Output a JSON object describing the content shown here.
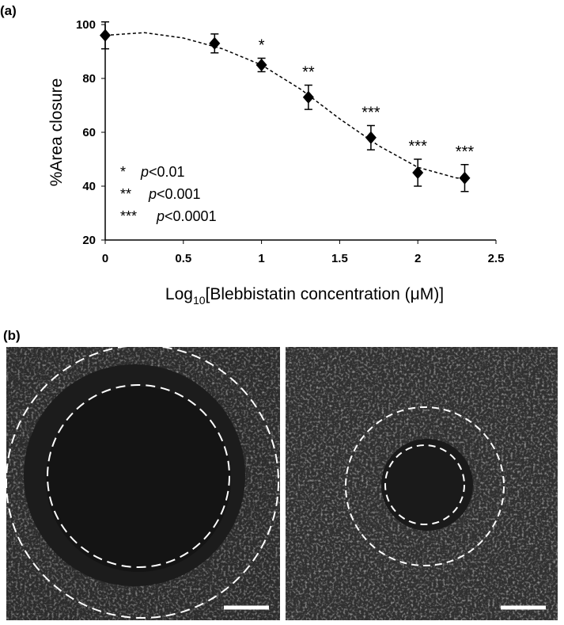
{
  "panel_a_label": "(a)",
  "panel_b_label": "(b)",
  "chart_data": {
    "type": "scatter",
    "ylabel": "%Area closure",
    "xlabel": {
      "prefix": "Log",
      "subscript": "10",
      "suffix": "[Blebbistatin concentration (μM)]"
    },
    "xlim": [
      0,
      2.5
    ],
    "xticks": [
      0,
      0.5,
      1,
      1.5,
      2,
      2.5
    ],
    "ylim": [
      20,
      100
    ],
    "yticks": [
      20,
      40,
      60,
      80,
      100
    ],
    "series": [
      {
        "color": "#000000",
        "x": [
          0,
          0.7,
          1,
          1.3,
          1.7,
          2,
          2.3
        ],
        "values": [
          96,
          93,
          85,
          73,
          58,
          45,
          43
        ],
        "errors": [
          5,
          3.5,
          2.5,
          4.5,
          4.5,
          5,
          5
        ]
      }
    ],
    "significance": [
      null,
      null,
      "*",
      "**",
      "***",
      "***",
      "***"
    ],
    "fit": {
      "x": [
        0,
        0.25,
        0.5,
        0.75,
        1,
        1.25,
        1.5,
        1.75,
        2,
        2.25,
        2.3
      ],
      "values": [
        96,
        97,
        95,
        91,
        85,
        76,
        65,
        55,
        47,
        43,
        43
      ]
    },
    "key": [
      {
        "stars": "*",
        "italic": "p",
        "text": "<0.01"
      },
      {
        "stars": "**",
        "italic": "p",
        "text": "<0.001"
      },
      {
        "stars": "***",
        "italic": "p",
        "text": "<0.0001"
      }
    ]
  }
}
